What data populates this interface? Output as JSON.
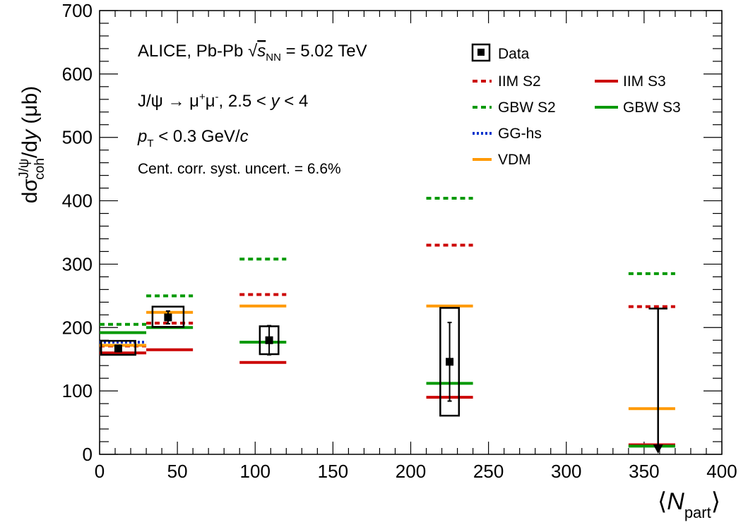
{
  "chart_data": {
    "type": "scatter",
    "xlim": [
      0,
      400
    ],
    "ylim": [
      0,
      700
    ],
    "x_ticks": [
      0,
      50,
      100,
      150,
      200,
      250,
      300,
      350,
      400
    ],
    "y_ticks": [
      0,
      100,
      200,
      300,
      400,
      500,
      600,
      700
    ],
    "x_tick_labels": [
      "0",
      "50",
      "100",
      "150",
      "200",
      "250",
      "300",
      "350",
      "400"
    ],
    "y_tick_labels": [
      "0",
      "100",
      "200",
      "300",
      "400",
      "500",
      "600",
      "700"
    ],
    "xlabel": {
      "pre": "⟨",
      "main": "N",
      "sub": "part",
      "post": "⟩"
    },
    "ylabel": {
      "d": "dσ",
      "sup": "J/ψ",
      "sub": "coh",
      "rest": "/d",
      "var": "y",
      "unit": " (μb)"
    },
    "annotations": {
      "line1": {
        "a": "ALICE, Pb-Pb ",
        "sqrt": "√",
        "s": "s",
        "sub": "NN",
        "b": " = 5.02 TeV"
      },
      "line2": {
        "a": "J/ψ → μ",
        "sup1": "+",
        "b": "μ",
        "sup2": "-",
        "c": ", 2.5 < ",
        "var": "y",
        "d": " < 4"
      },
      "line3": {
        "var": "p",
        "sub": "T",
        "b": " < 0.3 GeV/",
        "c": "c"
      },
      "line4": "Cent. corr. syst. uncert. = 6.6%"
    },
    "legend": {
      "placement": "top-right",
      "entries": [
        {
          "key": "data",
          "label": "Data"
        },
        {
          "key": "iim_s2",
          "label": "IIM S2"
        },
        {
          "key": "iim_s3",
          "label": "IIM S3"
        },
        {
          "key": "gbw_s2",
          "label": "GBW S2"
        },
        {
          "key": "gbw_s3",
          "label": "GBW S3"
        },
        {
          "key": "gg_hs",
          "label": "GG-hs"
        },
        {
          "key": "vdm",
          "label": "VDM"
        }
      ]
    },
    "bins": [
      [
        0,
        30
      ],
      [
        30,
        60
      ],
      [
        90,
        120
      ],
      [
        210,
        240
      ],
      [
        340,
        370
      ]
    ],
    "data": [
      {
        "x": 12,
        "y": 167,
        "stat_low": 162,
        "stat_high": 172,
        "syst_low": 157,
        "syst_high": 179
      },
      {
        "x": 44,
        "y": 216,
        "stat_low": 206,
        "stat_high": 226,
        "syst_low": 201,
        "syst_high": 233
      },
      {
        "x": 109,
        "y": 180,
        "stat_low": 157,
        "stat_high": 203,
        "syst_low": 158,
        "syst_high": 202
      },
      {
        "x": 225,
        "y": 146,
        "stat_low": 84,
        "stat_high": 208,
        "syst_low": 61,
        "syst_high": 231
      },
      {
        "x": 359,
        "y": 230,
        "upper_limit": true
      }
    ],
    "series": [
      {
        "key": "iim_s2",
        "color": "#cc0000",
        "style": "dashed",
        "values": [
          171,
          207,
          252,
          330,
          233
        ]
      },
      {
        "key": "iim_s3",
        "color": "#cc0000",
        "style": "solid",
        "values": [
          160,
          165,
          145,
          90,
          15
        ]
      },
      {
        "key": "gbw_s2",
        "color": "#009900",
        "style": "dashed",
        "values": [
          205,
          250,
          308,
          404,
          285
        ]
      },
      {
        "key": "gbw_s3",
        "color": "#009900",
        "style": "solid",
        "values": [
          192,
          200,
          177,
          112,
          13
        ]
      },
      {
        "key": "gg_hs",
        "color": "#0033cc",
        "style": "dotted",
        "values": [
          177,
          null,
          null,
          null,
          null
        ]
      },
      {
        "key": "vdm",
        "color": "#ff9900",
        "style": "solid",
        "values": [
          172,
          224,
          234,
          234,
          72
        ]
      }
    ]
  }
}
